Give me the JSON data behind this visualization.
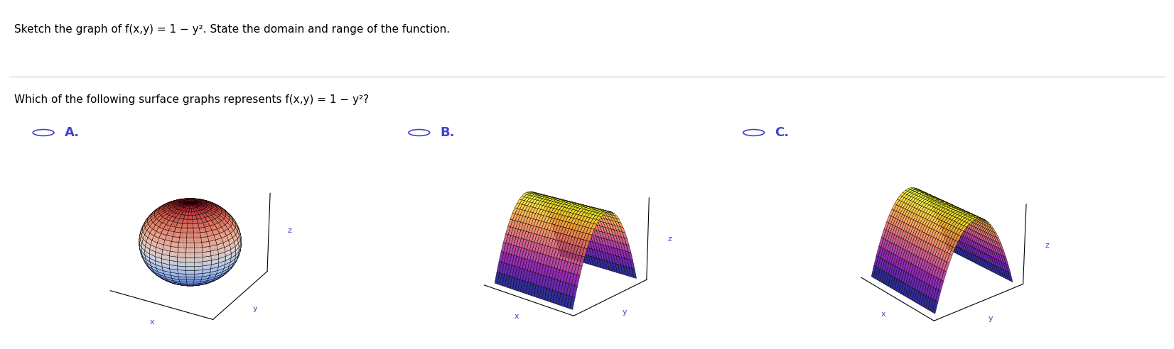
{
  "title_line1": "Sketch the graph of f(x,y) = 1 − y². State the domain and range of the function.",
  "title_line2": "Which of the following surface graphs represents f(x,y) = 1 − y²?",
  "options": [
    "A.",
    "B.",
    "C."
  ],
  "option_color": "#4444cc",
  "background_color": "#ffffff",
  "text_color": "#000000",
  "label_fontsize": 12,
  "title_fontsize": 11
}
